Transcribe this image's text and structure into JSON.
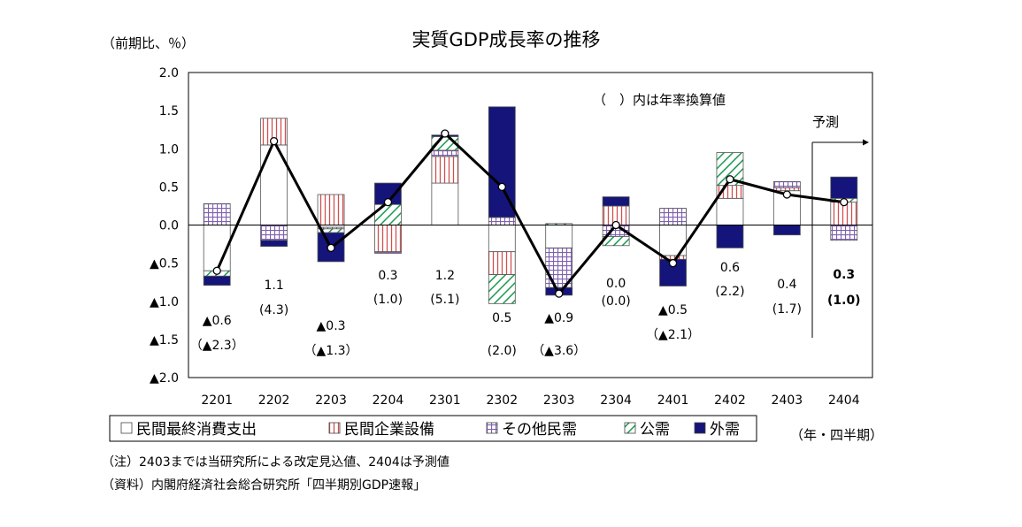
{
  "chart_data": {
    "type": "bar",
    "title": "実質GDP成長率の推移",
    "unit_label": "（前期比、％）",
    "xunit_label": "（年・四半期）",
    "annotation_annual": "（　）内は年率換算値",
    "annotation_forecast": "予測",
    "categories": [
      "2201",
      "2202",
      "2203",
      "2204",
      "2301",
      "2302",
      "2303",
      "2304",
      "2401",
      "2402",
      "2403",
      "2404"
    ],
    "y_tick_labels": [
      "2.0",
      "1.5",
      "1.0",
      "0.5",
      "0.0",
      "▲0.5",
      "▲1.0",
      "▲1.5",
      "▲2.0"
    ],
    "ylim": [
      -2.0,
      2.0
    ],
    "grid": false,
    "legend_position": "bottom",
    "series": [
      {
        "name": "民間最終消費支出",
        "color": "#ffffff",
        "pattern": "plain",
        "values": [
          -0.6,
          1.05,
          -0.03,
          0.0,
          0.55,
          -0.35,
          -0.3,
          0.0,
          -0.4,
          0.35,
          0.45,
          0.0
        ]
      },
      {
        "name": "民間企業設備",
        "color": "#d05050",
        "pattern": "vertical-lines",
        "values": [
          0.0,
          0.35,
          0.4,
          -0.35,
          0.35,
          -0.3,
          0.0,
          0.25,
          -0.05,
          0.17,
          0.04,
          0.3
        ]
      },
      {
        "name": "その他民需",
        "color": "#8060b0",
        "pattern": "grid",
        "values": [
          0.28,
          -0.2,
          -0.02,
          -0.02,
          0.08,
          0.1,
          -0.52,
          -0.15,
          0.22,
          0.0,
          0.08,
          -0.2
        ]
      },
      {
        "name": "公需",
        "color": "#1a9a50",
        "pattern": "diagonal",
        "values": [
          -0.07,
          0.0,
          -0.05,
          0.27,
          0.18,
          -0.38,
          0.02,
          -0.12,
          0.0,
          0.43,
          0.0,
          0.05
        ]
      },
      {
        "name": "外需",
        "color": "#14147a",
        "pattern": "solid",
        "values": [
          -0.12,
          -0.08,
          -0.38,
          0.28,
          0.02,
          1.45,
          -0.1,
          0.12,
          -0.35,
          -0.3,
          -0.13,
          0.28
        ]
      }
    ],
    "line": {
      "name": "実質GDP成長率",
      "values": [
        -0.6,
        1.1,
        -0.3,
        0.3,
        1.2,
        0.5,
        -0.9,
        0.0,
        -0.5,
        0.6,
        0.4,
        0.3
      ]
    },
    "value_labels": [
      {
        "value": "▲0.6",
        "annual": "（▲2.3）"
      },
      {
        "value": "1.1",
        "annual": "(4.3)"
      },
      {
        "value": "▲0.3",
        "annual": "（▲1.3）"
      },
      {
        "value": "0.3",
        "annual": "(1.0)"
      },
      {
        "value": "1.2",
        "annual": "(5.1)"
      },
      {
        "value": "0.5",
        "annual": "(2.0)"
      },
      {
        "value": "▲0.9",
        "annual": "（▲3.6）"
      },
      {
        "value": "0.0",
        "annual": "(0.0)"
      },
      {
        "value": "▲0.5",
        "annual": "（▲2.1）"
      },
      {
        "value": "0.6",
        "annual": "(2.2)"
      },
      {
        "value": "0.4",
        "annual": "(1.7)"
      },
      {
        "value": "0.3",
        "annual": "(1.0)"
      }
    ],
    "notes": [
      "（注）2403までは当研究所による改定見込値、2404は予測値",
      "（資料）内閣府経済社会総合研究所「四半期別GDP速報」"
    ]
  }
}
